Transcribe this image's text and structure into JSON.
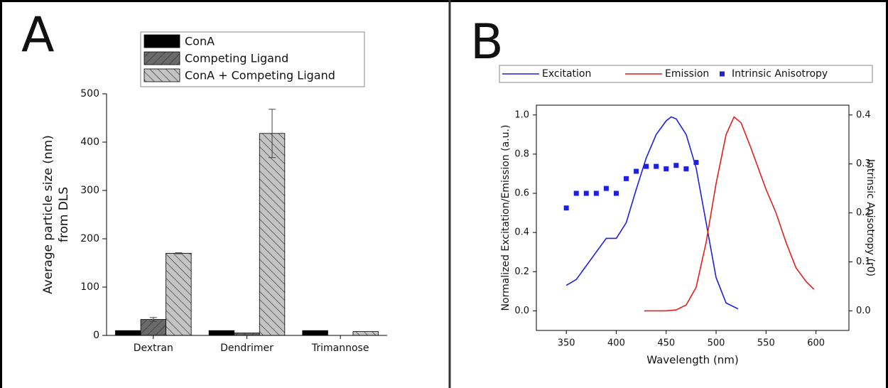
{
  "chart_data": [
    {
      "type": "bar",
      "panel": "A",
      "ylabel": [
        "Average particle size (nm)",
        "from DLS"
      ],
      "categories": [
        "Dextran",
        "Dendrimer",
        "Trimannose"
      ],
      "series": [
        {
          "name": "ConA",
          "color": "#000000",
          "hatch": null,
          "values": [
            10,
            10,
            10
          ],
          "errors": [
            null,
            null,
            null
          ]
        },
        {
          "name": "Competing Ligand",
          "color": "#6a6a6a",
          "hatch": "/",
          "values": [
            33,
            5,
            0
          ],
          "errors": [
            4,
            null,
            null
          ]
        },
        {
          "name": "ConA + Competing Ligand",
          "color": "#c4c4c4",
          "hatch": "\\",
          "values": [
            170,
            418,
            8
          ],
          "errors": [
            1,
            50,
            null
          ]
        }
      ],
      "ylim": [
        0,
        500
      ],
      "yticks": [
        0,
        100,
        200,
        300,
        400,
        500
      ],
      "grid": false
    },
    {
      "type": "line",
      "panel": "B",
      "xlabel": "Wavelength (nm)",
      "ylabel": "Normalized Excitation/Emission (a.u.)",
      "y2label": "Intrinsic Anisotropy (r0)",
      "series": [
        {
          "name": "Excitation",
          "color": "#1f1fe0",
          "mode": "lines",
          "x": [
            350,
            360,
            370,
            380,
            390,
            395,
            400,
            410,
            420,
            430,
            440,
            450,
            455,
            460,
            470,
            480,
            490,
            500,
            510,
            522
          ],
          "values": [
            0.13,
            0.16,
            0.23,
            0.3,
            0.37,
            0.37,
            0.37,
            0.45,
            0.62,
            0.78,
            0.9,
            0.97,
            0.99,
            0.98,
            0.9,
            0.73,
            0.45,
            0.17,
            0.04,
            0.01
          ]
        },
        {
          "name": "Emission",
          "color": "#e01f1f",
          "mode": "lines",
          "x": [
            428,
            440,
            450,
            460,
            470,
            480,
            490,
            500,
            510,
            518,
            525,
            535,
            550,
            560,
            570,
            580,
            590,
            598
          ],
          "values": [
            0.0,
            0.0,
            0.0,
            0.005,
            0.03,
            0.12,
            0.35,
            0.65,
            0.9,
            0.99,
            0.96,
            0.83,
            0.62,
            0.5,
            0.35,
            0.22,
            0.15,
            0.11
          ]
        },
        {
          "name": "Intrinsic Anisotropy",
          "color": "#1f1fe0",
          "mode": "markers",
          "axis": "y2",
          "x": [
            350,
            360,
            370,
            380,
            390,
            400,
            410,
            420,
            430,
            440,
            450,
            460,
            470,
            480
          ],
          "values": [
            0.21,
            0.24,
            0.24,
            0.24,
            0.25,
            0.24,
            0.27,
            0.285,
            0.295,
            0.295,
            0.29,
            0.297,
            0.29,
            0.303
          ]
        }
      ],
      "xlim": [
        320,
        633
      ],
      "xticks": [
        350,
        400,
        450,
        500,
        550,
        600
      ],
      "ylim": [
        -0.1,
        1.05
      ],
      "yticks": [
        {
          "value": 0,
          "label": "0.0"
        },
        0.2,
        0.4,
        0.6,
        0.8,
        {
          "value": 1,
          "label": "1.0"
        }
      ],
      "y2lim": [
        -0.04,
        0.42
      ],
      "y2ticks": [
        {
          "value": 0,
          "label": "0.0"
        },
        0.1,
        0.2,
        0.3,
        0.4
      ],
      "grid": false
    }
  ]
}
